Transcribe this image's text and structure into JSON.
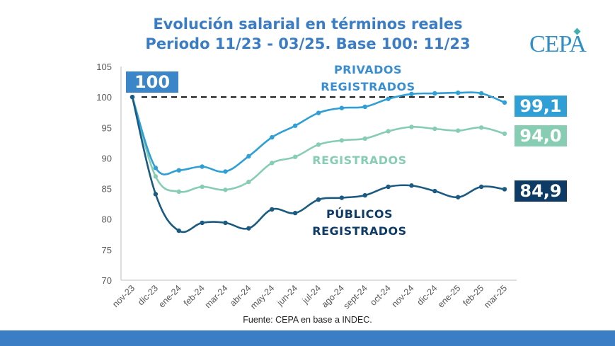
{
  "chart_data": {
    "type": "line",
    "title": "Evolución salarial en términos reales",
    "subtitle": "Periodo 11/23 - 03/25. Base 100: 11/23",
    "categories": [
      "nov-23",
      "dic-23",
      "ene-24",
      "feb-24",
      "mar-24",
      "abr-24",
      "may-24",
      "jun-24",
      "jul-24",
      "ago-24",
      "sept-24",
      "oct-24",
      "nov-24",
      "dic-24",
      "ene-25",
      "feb-25",
      "mar-25"
    ],
    "ylim": [
      70,
      105
    ],
    "yticks": [
      "70",
      "75",
      "80",
      "85",
      "90",
      "95",
      "100",
      "105"
    ],
    "baseline": 100,
    "series": [
      {
        "name": "PRIVADOS REGISTRADOS",
        "color": "#2f9fd6",
        "values": [
          100,
          88.4,
          88.0,
          88.6,
          87.8,
          90.3,
          93.4,
          95.3,
          97.4,
          98.2,
          98.4,
          99.7,
          100.5,
          100.6,
          100.7,
          100.6,
          99.1
        ]
      },
      {
        "name": "REGISTRADOS",
        "color": "#86cdb3",
        "values": [
          100,
          87.0,
          84.5,
          85.3,
          84.8,
          86.1,
          89.2,
          90.2,
          92.2,
          92.9,
          93.2,
          94.4,
          95.1,
          94.8,
          94.5,
          95.0,
          94.0
        ]
      },
      {
        "name": "PÚBLICOS REGISTRADOS",
        "color": "#1b5b82",
        "values": [
          100,
          84.1,
          78.1,
          79.4,
          79.4,
          78.5,
          81.6,
          81.0,
          83.2,
          83.5,
          83.9,
          85.3,
          85.5,
          84.6,
          83.6,
          85.3,
          84.9
        ]
      }
    ],
    "start_label": "100",
    "end_labels": [
      "99,1",
      "94,0",
      "84,9"
    ],
    "label_colors": {
      "start": "#3a86c8",
      "privados": "#2f9fd6",
      "registrados": "#86cdb3",
      "publicos": "#0e3a66"
    },
    "source": "Fuente: CEPA en base a INDEC."
  },
  "logo": "CEPA",
  "footer_color": "#3b7ec6"
}
